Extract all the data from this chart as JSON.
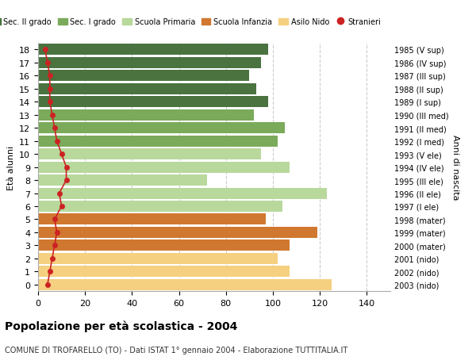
{
  "ages": [
    18,
    17,
    16,
    15,
    14,
    13,
    12,
    11,
    10,
    9,
    8,
    7,
    6,
    5,
    4,
    3,
    2,
    1,
    0
  ],
  "values": [
    98,
    95,
    90,
    93,
    98,
    92,
    105,
    102,
    95,
    107,
    72,
    123,
    104,
    97,
    119,
    107,
    102,
    107,
    125
  ],
  "stranieri": [
    3,
    4,
    5,
    5,
    5,
    6,
    7,
    8,
    10,
    12,
    12,
    9,
    10,
    7,
    8,
    7,
    6,
    5,
    4
  ],
  "right_labels": [
    "1985 (V sup)",
    "1986 (IV sup)",
    "1987 (III sup)",
    "1988 (II sup)",
    "1989 (I sup)",
    "1990 (III med)",
    "1991 (II med)",
    "1992 (I med)",
    "1993 (V ele)",
    "1994 (IV ele)",
    "1995 (III ele)",
    "1996 (II ele)",
    "1997 (I ele)",
    "1998 (mater)",
    "1999 (mater)",
    "2000 (mater)",
    "2001 (nido)",
    "2002 (nido)",
    "2003 (nido)"
  ],
  "bar_colors": [
    "#4a7340",
    "#4a7340",
    "#4a7340",
    "#4a7340",
    "#4a7340",
    "#7aaa5a",
    "#7aaa5a",
    "#7aaa5a",
    "#b8d89c",
    "#b8d89c",
    "#b8d89c",
    "#b8d89c",
    "#b8d89c",
    "#d07830",
    "#d07830",
    "#d07830",
    "#f5d080",
    "#f5d080",
    "#f5d080"
  ],
  "legend_labels": [
    "Sec. II grado",
    "Sec. I grado",
    "Scuola Primaria",
    "Scuola Infanzia",
    "Asilo Nido",
    "Stranieri"
  ],
  "legend_colors": [
    "#4a7340",
    "#7aaa5a",
    "#b8d89c",
    "#d07830",
    "#f5d080",
    "#cc2222"
  ],
  "title": "Popolazione per età scolastica - 2004",
  "subtitle": "COMUNE DI TROFARELLO (TO) - Dati ISTAT 1° gennaio 2004 - Elaborazione TUTTITALIA.IT",
  "ylabel": "Età alunni",
  "right_ylabel": "Anni di nascita",
  "xlim": [
    0,
    150
  ],
  "xticks": [
    0,
    20,
    40,
    60,
    80,
    100,
    120,
    140
  ],
  "grid_color": "#cccccc",
  "stranieri_color": "#cc2222",
  "bar_height": 0.85
}
